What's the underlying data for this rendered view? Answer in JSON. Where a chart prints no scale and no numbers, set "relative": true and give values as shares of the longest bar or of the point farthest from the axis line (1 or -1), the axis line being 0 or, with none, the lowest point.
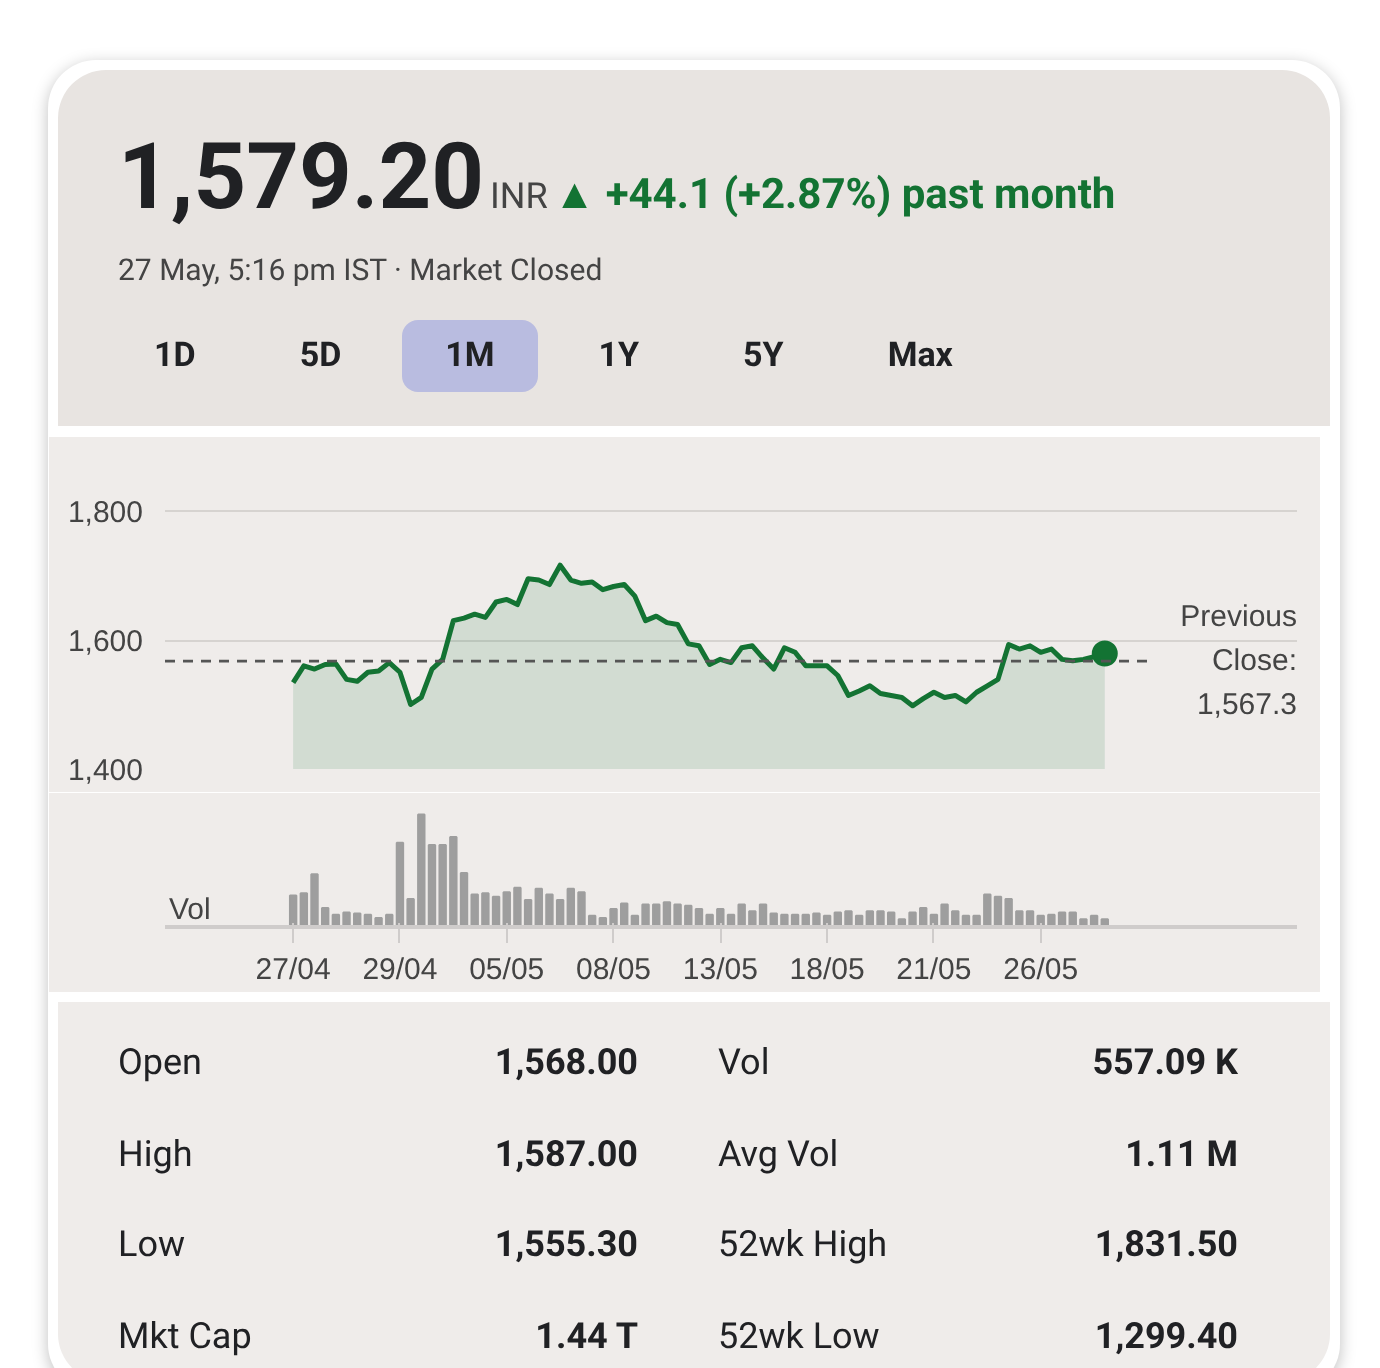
{
  "chart_data": [
    {
      "type": "other",
      "title": "1,579.20",
      "subtitle": "27 May, 5:16 pm IST · Market Closed",
      "color": "#137333",
      "annotations": [
        "INR",
        "▲ +44.1 (+2.87%) past month",
        "1D",
        "5D",
        "1M",
        "1Y",
        "5Y",
        "Max"
      ]
    },
    {
      "type": "area",
      "ylim": [
        1400,
        1890
      ],
      "yticks": [
        {
          "value": 1400,
          "label": "1,400"
        },
        {
          "value": 1600,
          "label": "1,600"
        },
        {
          "value": 1800,
          "label": "1,800"
        }
      ],
      "grid": "y",
      "tick_labels": "y",
      "categories": [
        null,
        null,
        null,
        null,
        null,
        null,
        null,
        null,
        null,
        null,
        null,
        null,
        null,
        null,
        null,
        null,
        null,
        null,
        null,
        null,
        null,
        null,
        null,
        null,
        null,
        null,
        null,
        null,
        null,
        null,
        null,
        null,
        null,
        null,
        null,
        null,
        null,
        null,
        null,
        null,
        null,
        null,
        null,
        null,
        null,
        null,
        null,
        null,
        null,
        null,
        null,
        null,
        null,
        null,
        null,
        null,
        null,
        null,
        null,
        null,
        null,
        null,
        null,
        null,
        null,
        null,
        null,
        null,
        null,
        null,
        null,
        null,
        null,
        null,
        null,
        null,
        null
      ],
      "series": [
        {
          "type": "area",
          "color": "#137333",
          "values": [
            1534,
            1560,
            1555,
            1562,
            1563,
            1539,
            1536,
            1550,
            1552,
            1565,
            1550,
            1500,
            1511,
            1555,
            1570,
            1630,
            1634,
            1640,
            1635,
            1659,
            1663,
            1655,
            1695,
            1693,
            1686,
            1716,
            1693,
            1688,
            1690,
            1678,
            1683,
            1686,
            1668,
            1630,
            1637,
            1627,
            1624,
            1594,
            1591,
            1562,
            1570,
            1565,
            1588,
            1591,
            1572,
            1555,
            1588,
            1581,
            1560,
            1560,
            1560,
            1545,
            1514,
            1521,
            1529,
            1517,
            1514,
            1511,
            1498,
            1509,
            1519,
            1511,
            1514,
            1504,
            1519,
            1529,
            1539,
            1593,
            1586,
            1591,
            1581,
            1586,
            1570,
            1568,
            1570,
            1574,
            1579
          ]
        },
        {
          "type": "scatter",
          "marker": "circle",
          "color": "#137333",
          "values": [
            null,
            null,
            null,
            null,
            null,
            null,
            null,
            null,
            null,
            null,
            null,
            null,
            null,
            null,
            null,
            null,
            null,
            null,
            null,
            null,
            null,
            null,
            null,
            null,
            null,
            null,
            null,
            null,
            null,
            null,
            null,
            null,
            null,
            null,
            null,
            null,
            null,
            null,
            null,
            null,
            null,
            null,
            null,
            null,
            null,
            null,
            null,
            null,
            null,
            null,
            null,
            null,
            null,
            null,
            null,
            null,
            null,
            null,
            null,
            null,
            null,
            null,
            null,
            null,
            null,
            null,
            null,
            null,
            null,
            null,
            null,
            null,
            null,
            null,
            null,
            null,
            1579
          ]
        }
      ],
      "ref_lines": [
        {
          "axis": "y",
          "value": 1567.3,
          "label": "Previous\nClose:\n1,567.3",
          "line_style": "dashed",
          "color": "#555555"
        }
      ]
    },
    {
      "type": "bar",
      "relative": true,
      "ylabel": "Vol",
      "tick_labels": "x",
      "color": "#9e9e9e",
      "categories": [
        "27/04",
        null,
        null,
        null,
        null,
        null,
        null,
        null,
        null,
        null,
        "29/04",
        null,
        null,
        null,
        null,
        null,
        null,
        null,
        null,
        null,
        "05/05",
        null,
        null,
        null,
        null,
        null,
        null,
        null,
        null,
        null,
        "08/05",
        null,
        null,
        null,
        null,
        null,
        null,
        null,
        null,
        null,
        "13/05",
        null,
        null,
        null,
        null,
        null,
        null,
        null,
        null,
        null,
        "18/05",
        null,
        null,
        null,
        null,
        null,
        null,
        null,
        null,
        null,
        "21/05",
        null,
        null,
        null,
        null,
        null,
        null,
        null,
        null,
        null,
        "26/05",
        null,
        null,
        null,
        null,
        null,
        null
      ],
      "values": [
        0.28,
        0.3,
        0.47,
        0.17,
        0.11,
        0.13,
        0.12,
        0.11,
        0.08,
        0.11,
        0.75,
        0.25,
        1.0,
        0.73,
        0.73,
        0.8,
        0.48,
        0.29,
        0.3,
        0.27,
        0.31,
        0.35,
        0.24,
        0.34,
        0.29,
        0.24,
        0.34,
        0.31,
        0.1,
        0.08,
        0.16,
        0.21,
        0.1,
        0.2,
        0.2,
        0.22,
        0.2,
        0.19,
        0.16,
        0.11,
        0.16,
        0.11,
        0.2,
        0.14,
        0.2,
        0.12,
        0.11,
        0.11,
        0.11,
        0.12,
        0.1,
        0.13,
        0.14,
        0.1,
        0.14,
        0.14,
        0.13,
        0.07,
        0.13,
        0.17,
        0.11,
        0.2,
        0.14,
        0.1,
        0.1,
        0.29,
        0.27,
        0.25,
        0.14,
        0.14,
        0.1,
        0.11,
        0.13,
        0.13,
        0.07,
        0.1,
        0.07
      ]
    },
    {
      "type": "other",
      "annotations": [
        "Open",
        "1,568.00",
        "Vol",
        "557.09 K",
        "High",
        "1,587.00",
        "Avg Vol",
        "1.11 M",
        "Low",
        "1,555.30",
        "52wk High",
        "1,831.50",
        "Mkt Cap",
        "1.44 T",
        "52wk Low",
        "1,299.40"
      ]
    }
  ]
}
